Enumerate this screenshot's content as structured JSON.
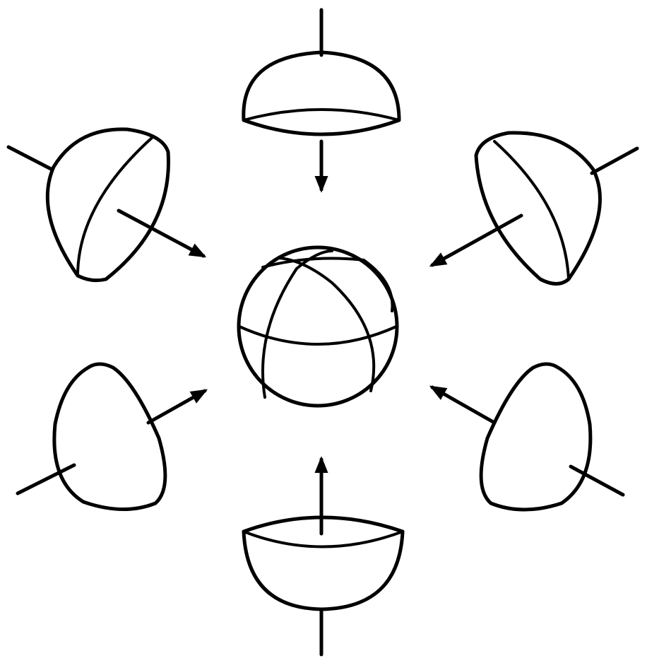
{
  "colors": {
    "ink": "#000000",
    "background": "#ffffff"
  },
  "figure": {
    "center": "sphere",
    "pieces": [
      "hemisphere-top",
      "hemisphere-upper-right",
      "hemisphere-lower-right",
      "hemisphere-bottom",
      "hemisphere-lower-left",
      "hemisphere-upper-left"
    ]
  }
}
